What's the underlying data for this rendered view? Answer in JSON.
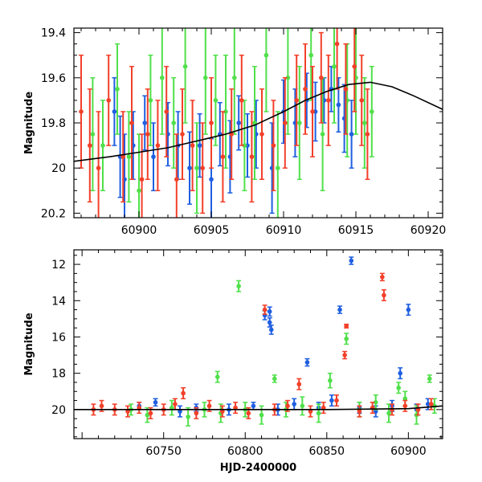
{
  "colors": {
    "blue": "#1f5fe0",
    "red": "#f2402a",
    "green": "#50e04a",
    "model": "#000000"
  },
  "chart_data": [
    {
      "type": "scatter",
      "title": "",
      "xlabel": "",
      "ylabel": "Magnitude",
      "xlim": [
        60895.5,
        60921
      ],
      "ylim": [
        20.22,
        19.38
      ],
      "y_inverted": true,
      "grid": false,
      "x_ticks": [
        60900,
        60905,
        60910,
        60915,
        60920
      ],
      "x_tick_labels": [
        "60900",
        "60905",
        "60910",
        "60915",
        "60920"
      ],
      "y_ticks": [
        19.4,
        19.6,
        19.8,
        20,
        20.2
      ],
      "y_tick_labels": [
        "19.4",
        "19.6",
        "19.8",
        "20",
        "20.2"
      ],
      "model_curve": {
        "color": "#000000",
        "x": [
          60895.5,
          60898,
          60900,
          60902,
          60904,
          60906,
          60908,
          60910,
          60911.5,
          60913,
          60914.5,
          60916,
          60917.5,
          60919,
          60921
        ],
        "y": [
          19.97,
          19.95,
          19.93,
          19.91,
          19.88,
          19.85,
          19.81,
          19.75,
          19.7,
          19.66,
          19.63,
          19.62,
          19.64,
          19.68,
          19.74
        ]
      },
      "series": [
        {
          "color": "#1f5fe0",
          "points": [
            [
              60898.3,
              19.75,
              0.15
            ],
            [
              60898.7,
              19.95,
              0.18
            ],
            [
              60899.0,
              20.05,
              0.2
            ],
            [
              60899.6,
              19.9,
              0.15
            ],
            [
              60900.4,
              19.8,
              0.12
            ],
            [
              60901.0,
              19.95,
              0.15
            ],
            [
              60902.0,
              19.85,
              0.14
            ],
            [
              60902.7,
              19.9,
              0.15
            ],
            [
              60903.5,
              20.0,
              0.16
            ],
            [
              60904.2,
              19.9,
              0.14
            ],
            [
              60905.0,
              20.05,
              0.18
            ],
            [
              60905.6,
              19.85,
              0.14
            ],
            [
              60906.3,
              19.95,
              0.16
            ],
            [
              60906.9,
              19.8,
              0.12
            ],
            [
              60907.5,
              19.9,
              0.14
            ],
            [
              60908.1,
              19.85,
              0.15
            ],
            [
              60909.2,
              20.0,
              0.2
            ],
            [
              60910.0,
              19.75,
              0.14
            ],
            [
              60910.8,
              19.8,
              0.15
            ],
            [
              60911.6,
              19.7,
              0.12
            ],
            [
              60912.2,
              19.75,
              0.13
            ],
            [
              60912.8,
              19.7,
              0.1
            ],
            [
              60913.3,
              19.65,
              0.1
            ],
            [
              60913.8,
              19.72,
              0.12
            ],
            [
              60914.2,
              19.78,
              0.15
            ],
            [
              60914.7,
              19.85,
              0.15
            ]
          ]
        },
        {
          "color": "#50e04a",
          "points": [
            [
              60896.8,
              19.85,
              0.25
            ],
            [
              60897.5,
              19.9,
              0.2
            ],
            [
              60898.5,
              19.65,
              0.2
            ],
            [
              60899.3,
              19.95,
              0.2
            ],
            [
              60900.0,
              20.1,
              0.25
            ],
            [
              60900.8,
              19.7,
              0.2
            ],
            [
              60901.6,
              19.6,
              0.25
            ],
            [
              60902.4,
              19.8,
              0.2
            ],
            [
              60903.2,
              19.55,
              0.25
            ],
            [
              60904.0,
              20.0,
              0.2
            ],
            [
              60904.6,
              19.6,
              0.25
            ],
            [
              60905.3,
              19.7,
              0.2
            ],
            [
              60906.0,
              19.75,
              0.25
            ],
            [
              60906.6,
              19.6,
              0.25
            ],
            [
              60907.3,
              19.9,
              0.2
            ],
            [
              60908.0,
              19.8,
              0.25
            ],
            [
              60908.8,
              19.5,
              0.25
            ],
            [
              60909.6,
              20.0,
              0.25
            ],
            [
              60910.3,
              19.6,
              0.25
            ],
            [
              60911.1,
              19.8,
              0.25
            ],
            [
              60911.9,
              19.5,
              0.2
            ],
            [
              60912.7,
              19.85,
              0.25
            ],
            [
              60913.5,
              19.55,
              0.25
            ],
            [
              60914.4,
              19.7,
              0.25
            ],
            [
              60915.0,
              19.6,
              0.25
            ],
            [
              60915.6,
              19.8,
              0.2
            ],
            [
              60916.1,
              19.75,
              0.2
            ]
          ]
        },
        {
          "color": "#f2402a",
          "points": [
            [
              60896.0,
              19.75,
              0.25
            ],
            [
              60896.6,
              19.9,
              0.25
            ],
            [
              60897.2,
              20.0,
              0.25
            ],
            [
              60897.9,
              19.7,
              0.2
            ],
            [
              60898.9,
              19.95,
              0.2
            ],
            [
              60899.5,
              19.8,
              0.25
            ],
            [
              60900.2,
              20.05,
              0.2
            ],
            [
              60900.6,
              19.85,
              0.2
            ],
            [
              60901.3,
              19.9,
              0.2
            ],
            [
              60901.9,
              19.75,
              0.2
            ],
            [
              60902.6,
              20.05,
              0.2
            ],
            [
              60903.0,
              19.85,
              0.2
            ],
            [
              60903.7,
              19.9,
              0.2
            ],
            [
              60904.4,
              20.0,
              0.2
            ],
            [
              60905.0,
              19.8,
              0.2
            ],
            [
              60905.8,
              19.95,
              0.2
            ],
            [
              60906.4,
              19.85,
              0.2
            ],
            [
              60907.1,
              19.7,
              0.2
            ],
            [
              60907.8,
              19.95,
              0.2
            ],
            [
              60908.5,
              19.85,
              0.2
            ],
            [
              60909.3,
              19.9,
              0.2
            ],
            [
              60910.1,
              19.8,
              0.2
            ],
            [
              60910.9,
              19.7,
              0.2
            ],
            [
              60911.5,
              19.65,
              0.2
            ],
            [
              60912.0,
              19.75,
              0.2
            ],
            [
              60912.6,
              19.6,
              0.2
            ],
            [
              60913.1,
              19.7,
              0.2
            ],
            [
              60913.7,
              19.45,
              0.2
            ],
            [
              60914.3,
              19.65,
              0.2
            ],
            [
              60914.9,
              19.55,
              0.2
            ],
            [
              60915.4,
              19.7,
              0.2
            ],
            [
              60915.8,
              19.85,
              0.2
            ]
          ]
        }
      ]
    },
    {
      "type": "scatter",
      "title": "",
      "xlabel": "HJD-2400000",
      "ylabel": "Magnitude",
      "xlim": [
        60695,
        60921
      ],
      "ylim": [
        21.6,
        11.2
      ],
      "y_inverted": true,
      "grid": false,
      "x_ticks": [
        60750,
        60800,
        60850,
        60900
      ],
      "x_tick_labels": [
        "60750",
        "60800",
        "60850",
        "60900"
      ],
      "y_ticks": [
        12,
        14,
        16,
        18,
        20
      ],
      "y_tick_labels": [
        "12",
        "14",
        "16",
        "18",
        "20"
      ],
      "model_curve": {
        "color": "#000000",
        "x": [
          60695,
          60750,
          60800,
          60850,
          60900,
          60921
        ],
        "y": [
          20.0,
          20.0,
          20.0,
          20.0,
          19.95,
          19.8
        ]
      },
      "series": [
        {
          "color": "#1f5fe0",
          "points": [
            [
              60735,
              19.8,
              0.2
            ],
            [
              60745,
              19.6,
              0.2
            ],
            [
              60760,
              20.1,
              0.3
            ],
            [
              60770,
              19.9,
              0.2
            ],
            [
              60790,
              20.0,
              0.3
            ],
            [
              60805,
              19.8,
              0.2
            ],
            [
              60812,
              14.8,
              0.25
            ],
            [
              60815,
              14.6,
              0.25
            ],
            [
              60815,
              15.2,
              0.25
            ],
            [
              60816,
              15.6,
              0.25
            ],
            [
              60820,
              20.0,
              0.3
            ],
            [
              60830,
              19.7,
              0.3
            ],
            [
              60838,
              17.4,
              0.2
            ],
            [
              60845,
              19.9,
              0.3
            ],
            [
              60853,
              19.5,
              0.3
            ],
            [
              60858,
              14.5,
              0.2
            ],
            [
              60865,
              11.8,
              0.2
            ],
            [
              60870,
              19.9,
              0.3
            ],
            [
              60880,
              20.1,
              0.3
            ],
            [
              60890,
              19.8,
              0.3
            ],
            [
              60895,
              18.0,
              0.3
            ],
            [
              60900,
              14.5,
              0.3
            ],
            [
              60905,
              20.0,
              0.3
            ],
            [
              60912,
              19.7,
              0.3
            ]
          ]
        },
        {
          "color": "#50e04a",
          "points": [
            [
              60730,
              20.0,
              0.3
            ],
            [
              60740,
              20.3,
              0.4
            ],
            [
              60755,
              19.9,
              0.4
            ],
            [
              60765,
              20.4,
              0.5
            ],
            [
              60775,
              20.0,
              0.4
            ],
            [
              60783,
              18.2,
              0.3
            ],
            [
              60785,
              20.2,
              0.5
            ],
            [
              60796,
              13.2,
              0.3
            ],
            [
              60800,
              20.0,
              0.4
            ],
            [
              60810,
              20.3,
              0.5
            ],
            [
              60818,
              18.3,
              0.2
            ],
            [
              60825,
              20.0,
              0.4
            ],
            [
              60835,
              19.8,
              0.5
            ],
            [
              60845,
              20.2,
              0.5
            ],
            [
              60852,
              18.4,
              0.4
            ],
            [
              60862,
              16.1,
              0.3
            ],
            [
              60870,
              20.0,
              0.4
            ],
            [
              60880,
              19.6,
              0.4
            ],
            [
              60888,
              20.2,
              0.5
            ],
            [
              60894,
              18.8,
              0.3
            ],
            [
              60898,
              19.4,
              0.4
            ],
            [
              60905,
              20.3,
              0.5
            ],
            [
              60913,
              18.3,
              0.2
            ],
            [
              60916,
              19.8,
              0.4
            ]
          ]
        },
        {
          "color": "#f2402a",
          "points": [
            [
              60707,
              20.0,
              0.3
            ],
            [
              60712,
              19.8,
              0.3
            ],
            [
              60720,
              20.0,
              0.3
            ],
            [
              60728,
              20.1,
              0.3
            ],
            [
              60735,
              19.9,
              0.3
            ],
            [
              60742,
              20.2,
              0.3
            ],
            [
              60750,
              20.0,
              0.3
            ],
            [
              60757,
              19.7,
              0.3
            ],
            [
              60762,
              19.1,
              0.3
            ],
            [
              60770,
              20.2,
              0.3
            ],
            [
              60778,
              19.8,
              0.3
            ],
            [
              60786,
              20.1,
              0.3
            ],
            [
              60794,
              19.9,
              0.3
            ],
            [
              60802,
              20.2,
              0.3
            ],
            [
              60812,
              14.5,
              0.25
            ],
            [
              60818,
              20.0,
              0.3
            ],
            [
              60826,
              19.8,
              0.3
            ],
            [
              60833,
              18.6,
              0.3
            ],
            [
              60840,
              20.1,
              0.3
            ],
            [
              60848,
              19.9,
              0.3
            ],
            [
              60856,
              19.5,
              0.3
            ],
            [
              60861,
              17.0,
              0.2
            ],
            [
              60862,
              15.4,
              0.1
            ],
            [
              60870,
              20.1,
              0.3
            ],
            [
              60878,
              19.9,
              0.3
            ],
            [
              60884,
              12.7,
              0.2
            ],
            [
              60885,
              13.7,
              0.3
            ],
            [
              60890,
              20.0,
              0.3
            ],
            [
              60898,
              19.8,
              0.3
            ],
            [
              60906,
              20.0,
              0.3
            ],
            [
              60914,
              19.7,
              0.3
            ]
          ]
        }
      ]
    }
  ]
}
